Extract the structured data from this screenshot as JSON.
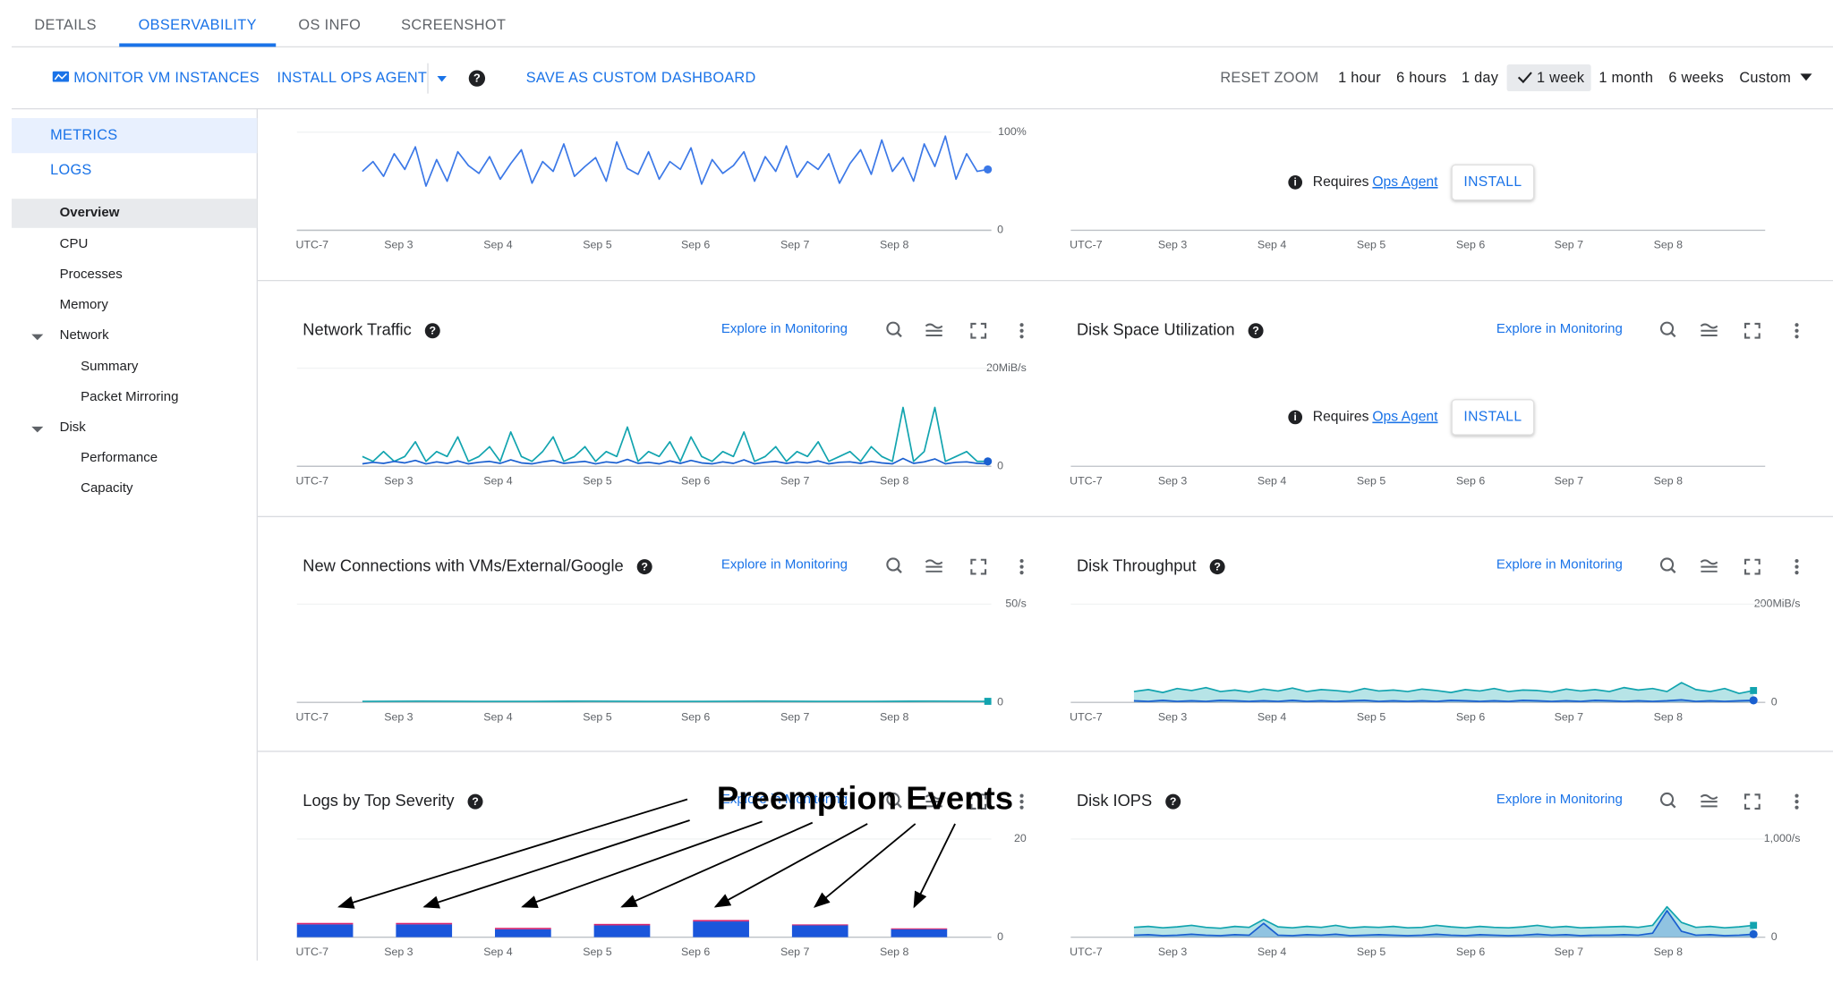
{
  "tabs": [
    "DETAILS",
    "OBSERVABILITY",
    "OS INFO",
    "SCREENSHOT"
  ],
  "toolbar": {
    "monitor": "MONITOR VM INSTANCES",
    "install": "INSTALL OPS AGENT",
    "save": "SAVE AS CUSTOM DASHBOARD",
    "reset": "RESET ZOOM",
    "ranges": [
      "1 hour",
      "6 hours",
      "1 day",
      "1 week",
      "1 month",
      "6 weeks",
      "Custom"
    ],
    "selected": "1 week"
  },
  "sidebar": {
    "sections": [
      "METRICS",
      "LOGS"
    ],
    "nav": [
      "Overview",
      "CPU",
      "Processes",
      "Memory",
      "Network",
      "Summary",
      "Packet Mirroring",
      "Disk",
      "Performance",
      "Capacity"
    ]
  },
  "explore": "Explore in Monitoring",
  "chart_data": [
    {
      "type": "line",
      "x_labels": [
        "UTC-7",
        "Sep 3",
        "Sep 4",
        "Sep 5",
        "Sep 6",
        "Sep 7",
        "Sep 8"
      ],
      "ylim": [
        0,
        100
      ],
      "yticks": [
        0,
        {
          "value": 100,
          "label": "100%"
        }
      ],
      "series": [
        {
          "color": "#3b78e7",
          "values": [
            60,
            70,
            55,
            78,
            62,
            85,
            45,
            72,
            50,
            80,
            66,
            58,
            75,
            52,
            68,
            82,
            48,
            70,
            60,
            88,
            55,
            65,
            74,
            50,
            90,
            63,
            57,
            80,
            52,
            70,
            62,
            84,
            47,
            72,
            58,
            66,
            80,
            50,
            75,
            60,
            86,
            54,
            70,
            62,
            78,
            48,
            68,
            82,
            57,
            92,
            60,
            74,
            50,
            88,
            65,
            96,
            52,
            78,
            60,
            62
          ]
        }
      ]
    },
    {
      "type": "line",
      "x_labels": [
        "UTC-7",
        "Sep 3",
        "Sep 4",
        "Sep 5",
        "Sep 6",
        "Sep 7",
        "Sep 8"
      ],
      "notice": {
        "text": "Requires",
        "link": "Ops Agent",
        "button": "INSTALL"
      }
    },
    {
      "type": "line",
      "title": "Network Traffic",
      "x_labels": [
        "UTC-7",
        "Sep 3",
        "Sep 4",
        "Sep 5",
        "Sep 6",
        "Sep 7",
        "Sep 8"
      ],
      "ylim": [
        0,
        20
      ],
      "yticks": [
        0,
        {
          "value": 20,
          "label": "20MiB/s"
        }
      ],
      "series": [
        {
          "color": "#12a4af",
          "values": [
            2,
            1,
            3,
            1,
            2,
            5,
            1,
            3,
            2,
            6,
            1,
            2,
            4,
            1,
            7,
            2,
            1,
            3,
            6,
            1,
            2,
            4,
            1,
            3,
            2,
            8,
            1,
            3,
            2,
            5,
            1,
            6,
            2,
            1,
            3,
            2,
            7,
            1,
            2,
            4,
            1,
            3,
            2,
            5,
            1,
            2,
            3,
            1,
            4,
            2,
            1,
            12,
            1,
            3,
            12,
            1,
            2,
            3,
            1,
            1
          ]
        },
        {
          "color": "#1a5fd0",
          "values": [
            0.5,
            0.8,
            0.6,
            1,
            0.7,
            1.2,
            0.5,
            0.9,
            0.6,
            1.1,
            0.5,
            0.8,
            1,
            0.6,
            1.3,
            0.7,
            0.5,
            0.9,
            1.2,
            0.6,
            0.8,
            1,
            0.5,
            0.9,
            0.7,
            1.4,
            0.6,
            0.8,
            0.5,
            1.1,
            0.6,
            1.2,
            0.7,
            0.5,
            0.9,
            0.6,
            1.3,
            0.5,
            0.8,
            1,
            0.6,
            0.9,
            0.7,
            1.1,
            0.5,
            0.8,
            0.9,
            0.6,
            1,
            0.7,
            0.5,
            1.6,
            0.6,
            0.9,
            1.5,
            0.5,
            0.8,
            0.9,
            0.6,
            0.5
          ]
        }
      ]
    },
    {
      "type": "line",
      "title": "Disk Space Utilization",
      "x_labels": [
        "UTC-7",
        "Sep 3",
        "Sep 4",
        "Sep 5",
        "Sep 6",
        "Sep 7",
        "Sep 8"
      ],
      "notice": {
        "text": "Requires",
        "link": "Ops Agent",
        "button": "INSTALL"
      }
    },
    {
      "type": "line",
      "title": "New Connections with VMs/External/Google",
      "x_labels": [
        "UTC-7",
        "Sep 3",
        "Sep 4",
        "Sep 5",
        "Sep 6",
        "Sep 7",
        "Sep 8"
      ],
      "ylim": [
        0,
        50
      ],
      "yticks": [
        0,
        {
          "value": 50,
          "label": "50/s"
        }
      ],
      "series": [
        {
          "color": "#12a4af",
          "values": [
            0.5,
            0.6,
            0.5,
            0.5,
            0.6,
            0.5,
            0.5,
            0.6,
            0.5,
            0.5,
            0.6,
            0.5
          ]
        }
      ]
    },
    {
      "type": "area",
      "title": "Disk Throughput",
      "x_labels": [
        "UTC-7",
        "Sep 3",
        "Sep 4",
        "Sep 5",
        "Sep 6",
        "Sep 7",
        "Sep 8"
      ],
      "ylim": [
        0,
        200
      ],
      "yticks": [
        0,
        {
          "value": 200,
          "label": "200MiB/s"
        }
      ],
      "series": [
        {
          "color": "#12a4af",
          "values": [
            22,
            26,
            20,
            28,
            24,
            30,
            22,
            25,
            21,
            27,
            23,
            29,
            22,
            26,
            24,
            21,
            28,
            23,
            25,
            22,
            27,
            24,
            20,
            26,
            23,
            28,
            22,
            25,
            24,
            21,
            27,
            23,
            26,
            22,
            30,
            25,
            28,
            22,
            40,
            26,
            22,
            28,
            18,
            24
          ]
        },
        {
          "color": "#1a5fd0",
          "values": [
            3,
            2,
            4,
            2,
            3,
            2,
            4,
            3,
            2,
            3,
            2,
            4,
            2,
            3,
            2,
            3,
            4,
            2,
            3,
            2,
            3,
            2,
            4,
            3,
            2,
            3,
            2,
            4,
            3,
            2,
            3,
            2,
            4,
            3,
            2,
            3,
            2,
            3,
            5,
            2,
            3,
            2,
            3,
            4
          ]
        }
      ]
    },
    {
      "type": "bar",
      "title": "Logs by Top Severity",
      "annotation": "Preemption Events",
      "x_labels": [
        "UTC-7",
        "Sep 3",
        "Sep 4",
        "Sep 5",
        "Sep 6",
        "Sep 7",
        "Sep 8"
      ],
      "ylim": [
        0,
        20
      ],
      "yticks": [
        0,
        20
      ],
      "series": [
        {
          "color": "#1a56db",
          "values": [
            2.6,
            2.6,
            1.6,
            2.4,
            3.2,
            2.4,
            1.6
          ]
        },
        {
          "color": "#d6246e",
          "values": [
            0.3,
            0.3,
            0.3,
            0.3,
            0.3,
            0.2,
            0.2
          ]
        }
      ]
    },
    {
      "type": "area",
      "title": "Disk IOPS",
      "x_labels": [
        "UTC-7",
        "Sep 3",
        "Sep 4",
        "Sep 5",
        "Sep 6",
        "Sep 7",
        "Sep 8"
      ],
      "ylim": [
        0,
        1000
      ],
      "yticks": [
        0,
        {
          "value": 1000,
          "label": "1,000/s"
        }
      ],
      "series": [
        {
          "color": "#12a4af",
          "values": [
            100,
            110,
            95,
            105,
            120,
            100,
            90,
            110,
            100,
            180,
            105,
            95,
            110,
            100,
            120,
            95,
            105,
            100,
            110,
            95,
            100,
            120,
            105,
            95,
            110,
            100,
            95,
            105,
            120,
            100,
            110,
            95,
            100,
            105,
            110,
            100,
            120,
            310,
            150,
            100,
            110,
            95,
            105,
            120
          ]
        },
        {
          "color": "#1a5fd0",
          "values": [
            20,
            25,
            15,
            20,
            30,
            20,
            15,
            25,
            20,
            140,
            20,
            15,
            25,
            20,
            30,
            15,
            20,
            25,
            20,
            15,
            20,
            30,
            20,
            15,
            25,
            20,
            15,
            20,
            30,
            20,
            25,
            15,
            20,
            20,
            25,
            20,
            40,
            270,
            60,
            20,
            25,
            15,
            20,
            30
          ]
        }
      ]
    }
  ]
}
